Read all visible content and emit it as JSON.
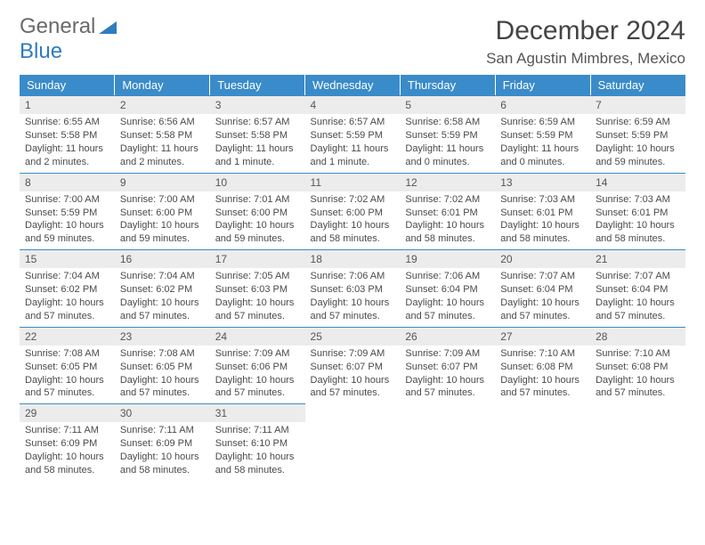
{
  "brand": {
    "word1": "General",
    "word2": "Blue"
  },
  "title": "December 2024",
  "location": "San Agustin Mimbres, Mexico",
  "colors": {
    "header_bg": "#3a8bc9",
    "header_text": "#ffffff",
    "daynum_bg": "#ececec",
    "body_text": "#4a4a4a",
    "rule": "#3a8bc9",
    "brand_gray": "#6a6a6a",
    "brand_blue": "#2f7bbf"
  },
  "weekdays": [
    "Sunday",
    "Monday",
    "Tuesday",
    "Wednesday",
    "Thursday",
    "Friday",
    "Saturday"
  ],
  "weeks": [
    [
      {
        "n": "1",
        "sr": "Sunrise: 6:55 AM",
        "ss": "Sunset: 5:58 PM",
        "dl": "Daylight: 11 hours and 2 minutes."
      },
      {
        "n": "2",
        "sr": "Sunrise: 6:56 AM",
        "ss": "Sunset: 5:58 PM",
        "dl": "Daylight: 11 hours and 2 minutes."
      },
      {
        "n": "3",
        "sr": "Sunrise: 6:57 AM",
        "ss": "Sunset: 5:58 PM",
        "dl": "Daylight: 11 hours and 1 minute."
      },
      {
        "n": "4",
        "sr": "Sunrise: 6:57 AM",
        "ss": "Sunset: 5:59 PM",
        "dl": "Daylight: 11 hours and 1 minute."
      },
      {
        "n": "5",
        "sr": "Sunrise: 6:58 AM",
        "ss": "Sunset: 5:59 PM",
        "dl": "Daylight: 11 hours and 0 minutes."
      },
      {
        "n": "6",
        "sr": "Sunrise: 6:59 AM",
        "ss": "Sunset: 5:59 PM",
        "dl": "Daylight: 11 hours and 0 minutes."
      },
      {
        "n": "7",
        "sr": "Sunrise: 6:59 AM",
        "ss": "Sunset: 5:59 PM",
        "dl": "Daylight: 10 hours and 59 minutes."
      }
    ],
    [
      {
        "n": "8",
        "sr": "Sunrise: 7:00 AM",
        "ss": "Sunset: 5:59 PM",
        "dl": "Daylight: 10 hours and 59 minutes."
      },
      {
        "n": "9",
        "sr": "Sunrise: 7:00 AM",
        "ss": "Sunset: 6:00 PM",
        "dl": "Daylight: 10 hours and 59 minutes."
      },
      {
        "n": "10",
        "sr": "Sunrise: 7:01 AM",
        "ss": "Sunset: 6:00 PM",
        "dl": "Daylight: 10 hours and 59 minutes."
      },
      {
        "n": "11",
        "sr": "Sunrise: 7:02 AM",
        "ss": "Sunset: 6:00 PM",
        "dl": "Daylight: 10 hours and 58 minutes."
      },
      {
        "n": "12",
        "sr": "Sunrise: 7:02 AM",
        "ss": "Sunset: 6:01 PM",
        "dl": "Daylight: 10 hours and 58 minutes."
      },
      {
        "n": "13",
        "sr": "Sunrise: 7:03 AM",
        "ss": "Sunset: 6:01 PM",
        "dl": "Daylight: 10 hours and 58 minutes."
      },
      {
        "n": "14",
        "sr": "Sunrise: 7:03 AM",
        "ss": "Sunset: 6:01 PM",
        "dl": "Daylight: 10 hours and 58 minutes."
      }
    ],
    [
      {
        "n": "15",
        "sr": "Sunrise: 7:04 AM",
        "ss": "Sunset: 6:02 PM",
        "dl": "Daylight: 10 hours and 57 minutes."
      },
      {
        "n": "16",
        "sr": "Sunrise: 7:04 AM",
        "ss": "Sunset: 6:02 PM",
        "dl": "Daylight: 10 hours and 57 minutes."
      },
      {
        "n": "17",
        "sr": "Sunrise: 7:05 AM",
        "ss": "Sunset: 6:03 PM",
        "dl": "Daylight: 10 hours and 57 minutes."
      },
      {
        "n": "18",
        "sr": "Sunrise: 7:06 AM",
        "ss": "Sunset: 6:03 PM",
        "dl": "Daylight: 10 hours and 57 minutes."
      },
      {
        "n": "19",
        "sr": "Sunrise: 7:06 AM",
        "ss": "Sunset: 6:04 PM",
        "dl": "Daylight: 10 hours and 57 minutes."
      },
      {
        "n": "20",
        "sr": "Sunrise: 7:07 AM",
        "ss": "Sunset: 6:04 PM",
        "dl": "Daylight: 10 hours and 57 minutes."
      },
      {
        "n": "21",
        "sr": "Sunrise: 7:07 AM",
        "ss": "Sunset: 6:04 PM",
        "dl": "Daylight: 10 hours and 57 minutes."
      }
    ],
    [
      {
        "n": "22",
        "sr": "Sunrise: 7:08 AM",
        "ss": "Sunset: 6:05 PM",
        "dl": "Daylight: 10 hours and 57 minutes."
      },
      {
        "n": "23",
        "sr": "Sunrise: 7:08 AM",
        "ss": "Sunset: 6:05 PM",
        "dl": "Daylight: 10 hours and 57 minutes."
      },
      {
        "n": "24",
        "sr": "Sunrise: 7:09 AM",
        "ss": "Sunset: 6:06 PM",
        "dl": "Daylight: 10 hours and 57 minutes."
      },
      {
        "n": "25",
        "sr": "Sunrise: 7:09 AM",
        "ss": "Sunset: 6:07 PM",
        "dl": "Daylight: 10 hours and 57 minutes."
      },
      {
        "n": "26",
        "sr": "Sunrise: 7:09 AM",
        "ss": "Sunset: 6:07 PM",
        "dl": "Daylight: 10 hours and 57 minutes."
      },
      {
        "n": "27",
        "sr": "Sunrise: 7:10 AM",
        "ss": "Sunset: 6:08 PM",
        "dl": "Daylight: 10 hours and 57 minutes."
      },
      {
        "n": "28",
        "sr": "Sunrise: 7:10 AM",
        "ss": "Sunset: 6:08 PM",
        "dl": "Daylight: 10 hours and 57 minutes."
      }
    ],
    [
      {
        "n": "29",
        "sr": "Sunrise: 7:11 AM",
        "ss": "Sunset: 6:09 PM",
        "dl": "Daylight: 10 hours and 58 minutes."
      },
      {
        "n": "30",
        "sr": "Sunrise: 7:11 AM",
        "ss": "Sunset: 6:09 PM",
        "dl": "Daylight: 10 hours and 58 minutes."
      },
      {
        "n": "31",
        "sr": "Sunrise: 7:11 AM",
        "ss": "Sunset: 6:10 PM",
        "dl": "Daylight: 10 hours and 58 minutes."
      },
      null,
      null,
      null,
      null
    ]
  ]
}
